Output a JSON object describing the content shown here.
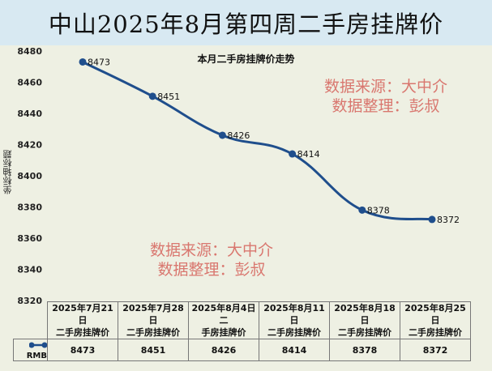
{
  "title": "中山2025年8月第四周二手房挂牌价",
  "watermark": {
    "line1": "数据来源：大中介",
    "line2": "数据整理：彭叔"
  },
  "chart_data": {
    "type": "line",
    "title": "本月二手房挂牌价走势",
    "ylabel": "坐标轴标题",
    "xlabel": "",
    "ylim": [
      8320,
      8480
    ],
    "yticks": [
      8320,
      8340,
      8360,
      8380,
      8400,
      8420,
      8440,
      8460,
      8480
    ],
    "categories": [
      "2025年7月21日二手房挂牌价",
      "2025年7月28日二手房挂牌价",
      "2025年8月4日二手房挂牌价",
      "2025年8月11日二手房挂牌价",
      "2025年8月18日二手房挂牌价",
      "2025年8月25日二手房挂牌价"
    ],
    "series": [
      {
        "name": "RMB",
        "values": [
          8473,
          8451,
          8426,
          8414,
          8378,
          8372
        ]
      }
    ],
    "grid": false,
    "legend": "data-table",
    "line_color": "#1f4e8c"
  },
  "table": {
    "headers": [
      [
        "2025年7月21日",
        "二手房挂牌价"
      ],
      [
        "2025年7月28日",
        "二手房挂牌价"
      ],
      [
        "2025年8月4日二",
        "手房挂牌价"
      ],
      [
        "2025年8月11日",
        "二手房挂牌价"
      ],
      [
        "2025年8月18日",
        "二手房挂牌价"
      ],
      [
        "2025年8月25日",
        "二手房挂牌价"
      ]
    ],
    "legend_label": "RMB",
    "values": [
      "8473",
      "8451",
      "8426",
      "8414",
      "8378",
      "8372"
    ]
  }
}
